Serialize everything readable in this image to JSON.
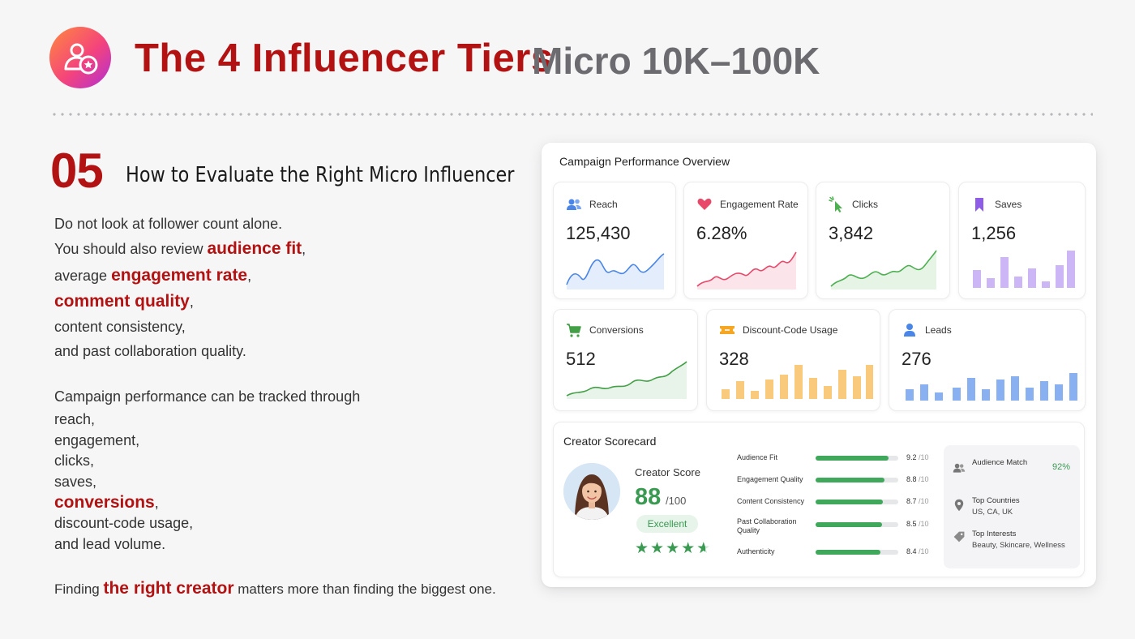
{
  "header": {
    "title": "The 4 Influencer Tiers",
    "subtitle": "Micro 10K–100K",
    "logo_icon": "user-star-icon"
  },
  "section": {
    "number": "05",
    "title": "How to Evaluate the Right Micro Influencer"
  },
  "body": {
    "p1": {
      "l1": "Do not look at follower count alone.",
      "l2_pre": "You should also review ",
      "l2_hl": "audience fit",
      "l2_post": ",",
      "l3_pre": "average ",
      "l3_hl": "engagement rate",
      "l3_post": ",",
      "l4_hl": "comment quality",
      "l4_post": ",",
      "l5": "content consistency,",
      "l6": "and past collaboration quality."
    },
    "p2": {
      "l1": "Campaign performance can be tracked through",
      "l2": "reach,",
      "l3": "engagement,",
      "l4": "clicks,",
      "l5": "saves,",
      "l6_hl": "conversions",
      "l6_post": ",",
      "l7": "discount-code usage,",
      "l8": "and lead volume."
    },
    "p3": {
      "pre": "Finding ",
      "hl": "the right creator",
      "post": " matters more than finding the biggest one."
    }
  },
  "dashboard": {
    "title": "Campaign Performance Overview",
    "cards": [
      {
        "label": "Reach",
        "value": "125,430",
        "icon": "users-icon",
        "color": "#4a86e8",
        "chart": "line"
      },
      {
        "label": "Engagement Rate",
        "value": "6.28%",
        "icon": "heart-icon",
        "color": "#e8496a",
        "chart": "line"
      },
      {
        "label": "Clicks",
        "value": "3,842",
        "icon": "cursor-click-icon",
        "color": "#4caf50",
        "chart": "line"
      },
      {
        "label": "Saves",
        "value": "1,256",
        "icon": "bookmark-icon",
        "color": "#8e5de8",
        "chart": "bar"
      },
      {
        "label": "Conversions",
        "value": "512",
        "icon": "cart-icon",
        "color": "#43a047",
        "chart": "line"
      },
      {
        "label": "Discount-Code Usage",
        "value": "328",
        "icon": "ticket-icon",
        "color": "#f5a623",
        "chart": "bar"
      },
      {
        "label": "Leads",
        "value": "276",
        "icon": "user-icon",
        "color": "#4a86e8",
        "chart": "bar"
      }
    ],
    "scorecard": {
      "title": "Creator Scorecard",
      "score_label": "Creator Score",
      "score": "88",
      "score_outof": "/100",
      "rating": "Excellent",
      "stars": 4.5,
      "stars_text": "★★★★★",
      "metrics": [
        {
          "label": "Audience Fit",
          "value": "9.2",
          "outof": "/10",
          "score": 9.2
        },
        {
          "label": "Engagement Quality",
          "value": "8.8",
          "outof": "/10",
          "score": 8.8
        },
        {
          "label": "Content Consistency",
          "value": "8.7",
          "outof": "/10",
          "score": 8.7
        },
        {
          "label": "Past Collaboration Quality",
          "value": "8.5",
          "outof": "/10",
          "score": 8.5
        },
        {
          "label": "Authenticity",
          "value": "8.4",
          "outof": "/10",
          "score": 8.4
        }
      ],
      "audience": {
        "match_label": "Audience Match",
        "match_value": "92%",
        "countries_label": "Top Countries",
        "countries_value": "US, CA, UK",
        "interests_label": "Top Interests",
        "interests_value": "Beauty, Skincare, Wellness"
      }
    }
  }
}
